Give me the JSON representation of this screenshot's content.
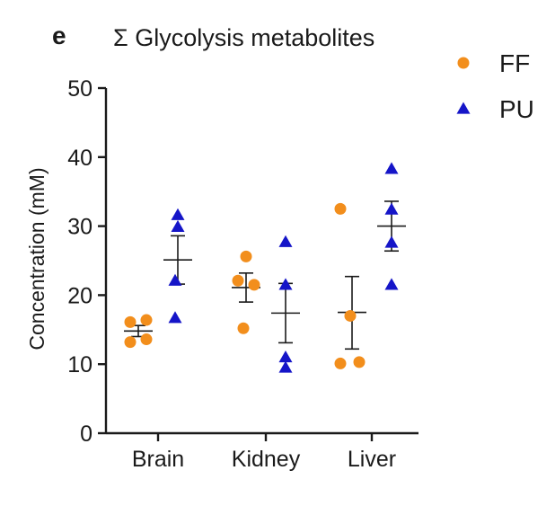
{
  "panel_label": "e",
  "chart_data": {
    "type": "scatter",
    "title": "Σ Glycolysis metabolites",
    "xlabel": "",
    "ylabel": "Concentration (mM)",
    "ylim": [
      0,
      50
    ],
    "yticks": [
      0,
      10,
      20,
      30,
      40,
      50
    ],
    "categories": [
      "Brain",
      "Kidney",
      "Liver"
    ],
    "legend_position": "top-right",
    "colors": {
      "FF": "#f28e1c",
      "PU": "#1515c8",
      "axis": "#1a1a1a"
    },
    "series": [
      {
        "name": "FF",
        "marker": "circle",
        "groups": [
          {
            "category": "Brain",
            "points": [
              16.1,
              16.4,
              13.2,
              13.6
            ],
            "mean": 14.8,
            "sem_low": 14.0,
            "sem_high": 15.6
          },
          {
            "category": "Kidney",
            "points": [
              25.6,
              22.1,
              21.5,
              15.2
            ],
            "mean": 21.1,
            "sem_low": 19.0,
            "sem_high": 23.2
          },
          {
            "category": "Liver",
            "points": [
              32.5,
              17.0,
              10.1,
              10.3
            ],
            "mean": 17.5,
            "sem_low": 12.2,
            "sem_high": 22.7
          }
        ]
      },
      {
        "name": "PU",
        "marker": "triangle",
        "groups": [
          {
            "category": "Brain",
            "points": [
              31.6,
              29.9,
              22.1,
              16.7
            ],
            "mean": 25.1,
            "sem_low": 21.6,
            "sem_high": 28.6
          },
          {
            "category": "Kidney",
            "points": [
              27.7,
              21.5,
              11.0,
              9.5
            ],
            "mean": 17.4,
            "sem_low": 13.1,
            "sem_high": 21.7
          },
          {
            "category": "Liver",
            "points": [
              38.3,
              32.4,
              27.6,
              21.5
            ],
            "mean": 30.0,
            "sem_low": 26.4,
            "sem_high": 33.6
          }
        ]
      }
    ]
  }
}
